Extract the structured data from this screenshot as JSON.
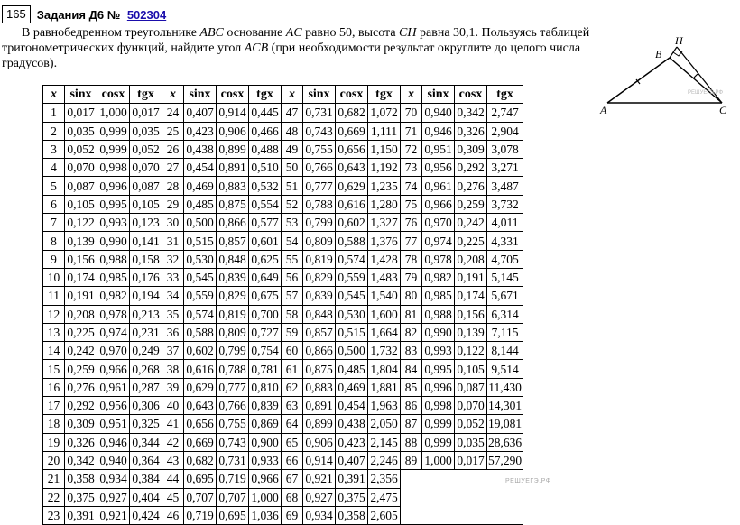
{
  "header": {
    "number": "165",
    "title": "Задания Д6 №",
    "link": "502304"
  },
  "problem": {
    "p1": "В равнобедренном треугольнике ",
    "abc": "ABC",
    "p2": " основание ",
    "ac": "AC",
    "p3": " равно 50, высота ",
    "ch": "CH",
    "p4": " равна 30,1. Пользуясь таблицей тригонометрических функций, найдите угол ",
    "acb": "ACB",
    "p5": " (при необходимости результат округлите до целого числа градусов)."
  },
  "figure": {
    "labels": {
      "a": "A",
      "b": "B",
      "c": "C",
      "h": "H"
    },
    "watermark": "РЕШУЕГЭ.РФ"
  },
  "table": {
    "headers": [
      "x",
      "sinx",
      "cosx",
      "tgx"
    ],
    "rows": [
      [
        "1",
        "0,017",
        "1,000",
        "0,017"
      ],
      [
        "2",
        "0,035",
        "0,999",
        "0,035"
      ],
      [
        "3",
        "0,052",
        "0,999",
        "0,052"
      ],
      [
        "4",
        "0,070",
        "0,998",
        "0,070"
      ],
      [
        "5",
        "0,087",
        "0,996",
        "0,087"
      ],
      [
        "6",
        "0,105",
        "0,995",
        "0,105"
      ],
      [
        "7",
        "0,122",
        "0,993",
        "0,123"
      ],
      [
        "8",
        "0,139",
        "0,990",
        "0,141"
      ],
      [
        "9",
        "0,156",
        "0,988",
        "0,158"
      ],
      [
        "10",
        "0,174",
        "0,985",
        "0,176"
      ],
      [
        "11",
        "0,191",
        "0,982",
        "0,194"
      ],
      [
        "12",
        "0,208",
        "0,978",
        "0,213"
      ],
      [
        "13",
        "0,225",
        "0,974",
        "0,231"
      ],
      [
        "14",
        "0,242",
        "0,970",
        "0,249"
      ],
      [
        "15",
        "0,259",
        "0,966",
        "0,268"
      ],
      [
        "16",
        "0,276",
        "0,961",
        "0,287"
      ],
      [
        "17",
        "0,292",
        "0,956",
        "0,306"
      ],
      [
        "18",
        "0,309",
        "0,951",
        "0,325"
      ],
      [
        "19",
        "0,326",
        "0,946",
        "0,344"
      ],
      [
        "20",
        "0,342",
        "0,940",
        "0,364"
      ],
      [
        "21",
        "0,358",
        "0,934",
        "0,384"
      ],
      [
        "22",
        "0,375",
        "0,927",
        "0,404"
      ],
      [
        "23",
        "0,391",
        "0,921",
        "0,424"
      ],
      [
        "24",
        "0,407",
        "0,914",
        "0,445"
      ],
      [
        "25",
        "0,423",
        "0,906",
        "0,466"
      ],
      [
        "26",
        "0,438",
        "0,899",
        "0,488"
      ],
      [
        "27",
        "0,454",
        "0,891",
        "0,510"
      ],
      [
        "28",
        "0,469",
        "0,883",
        "0,532"
      ],
      [
        "29",
        "0,485",
        "0,875",
        "0,554"
      ],
      [
        "30",
        "0,500",
        "0,866",
        "0,577"
      ],
      [
        "31",
        "0,515",
        "0,857",
        "0,601"
      ],
      [
        "32",
        "0,530",
        "0,848",
        "0,625"
      ],
      [
        "33",
        "0,545",
        "0,839",
        "0,649"
      ],
      [
        "34",
        "0,559",
        "0,829",
        "0,675"
      ],
      [
        "35",
        "0,574",
        "0,819",
        "0,700"
      ],
      [
        "36",
        "0,588",
        "0,809",
        "0,727"
      ],
      [
        "37",
        "0,602",
        "0,799",
        "0,754"
      ],
      [
        "38",
        "0,616",
        "0,788",
        "0,781"
      ],
      [
        "39",
        "0,629",
        "0,777",
        "0,810"
      ],
      [
        "40",
        "0,643",
        "0,766",
        "0,839"
      ],
      [
        "41",
        "0,656",
        "0,755",
        "0,869"
      ],
      [
        "42",
        "0,669",
        "0,743",
        "0,900"
      ],
      [
        "43",
        "0,682",
        "0,731",
        "0,933"
      ],
      [
        "44",
        "0,695",
        "0,719",
        "0,966"
      ],
      [
        "45",
        "0,707",
        "0,707",
        "1,000"
      ],
      [
        "46",
        "0,719",
        "0,695",
        "1,036"
      ],
      [
        "47",
        "0,731",
        "0,682",
        "1,072"
      ],
      [
        "48",
        "0,743",
        "0,669",
        "1,111"
      ],
      [
        "49",
        "0,755",
        "0,656",
        "1,150"
      ],
      [
        "50",
        "0,766",
        "0,643",
        "1,192"
      ],
      [
        "51",
        "0,777",
        "0,629",
        "1,235"
      ],
      [
        "52",
        "0,788",
        "0,616",
        "1,280"
      ],
      [
        "53",
        "0,799",
        "0,602",
        "1,327"
      ],
      [
        "54",
        "0,809",
        "0,588",
        "1,376"
      ],
      [
        "55",
        "0,819",
        "0,574",
        "1,428"
      ],
      [
        "56",
        "0,829",
        "0,559",
        "1,483"
      ],
      [
        "57",
        "0,839",
        "0,545",
        "1,540"
      ],
      [
        "58",
        "0,848",
        "0,530",
        "1,600"
      ],
      [
        "59",
        "0,857",
        "0,515",
        "1,664"
      ],
      [
        "60",
        "0,866",
        "0,500",
        "1,732"
      ],
      [
        "61",
        "0,875",
        "0,485",
        "1,804"
      ],
      [
        "62",
        "0,883",
        "0,469",
        "1,881"
      ],
      [
        "63",
        "0,891",
        "0,454",
        "1,963"
      ],
      [
        "64",
        "0,899",
        "0,438",
        "2,050"
      ],
      [
        "65",
        "0,906",
        "0,423",
        "2,145"
      ],
      [
        "66",
        "0,914",
        "0,407",
        "2,246"
      ],
      [
        "67",
        "0,921",
        "0,391",
        "2,356"
      ],
      [
        "68",
        "0,927",
        "0,375",
        "2,475"
      ],
      [
        "69",
        "0,934",
        "0,358",
        "2,605"
      ],
      [
        "70",
        "0,940",
        "0,342",
        "2,747"
      ],
      [
        "71",
        "0,946",
        "0,326",
        "2,904"
      ],
      [
        "72",
        "0,951",
        "0,309",
        "3,078"
      ],
      [
        "73",
        "0,956",
        "0,292",
        "3,271"
      ],
      [
        "74",
        "0,961",
        "0,276",
        "3,487"
      ],
      [
        "75",
        "0,966",
        "0,259",
        "3,732"
      ],
      [
        "76",
        "0,970",
        "0,242",
        "4,011"
      ],
      [
        "77",
        "0,974",
        "0,225",
        "4,331"
      ],
      [
        "78",
        "0,978",
        "0,208",
        "4,705"
      ],
      [
        "79",
        "0,982",
        "0,191",
        "5,145"
      ],
      [
        "80",
        "0,985",
        "0,174",
        "5,671"
      ],
      [
        "81",
        "0,988",
        "0,156",
        "6,314"
      ],
      [
        "82",
        "0,990",
        "0,139",
        "7,115"
      ],
      [
        "83",
        "0,993",
        "0,122",
        "8,144"
      ],
      [
        "84",
        "0,995",
        "0,105",
        "9,514"
      ],
      [
        "85",
        "0,996",
        "0,087",
        "11,430"
      ],
      [
        "86",
        "0,998",
        "0,070",
        "14,301"
      ],
      [
        "87",
        "0,999",
        "0,052",
        "19,081"
      ],
      [
        "88",
        "0,999",
        "0,035",
        "28,636"
      ],
      [
        "89",
        "1,000",
        "0,017",
        "57,290"
      ]
    ],
    "watermark": "РЕШУЕГЭ.РФ"
  }
}
